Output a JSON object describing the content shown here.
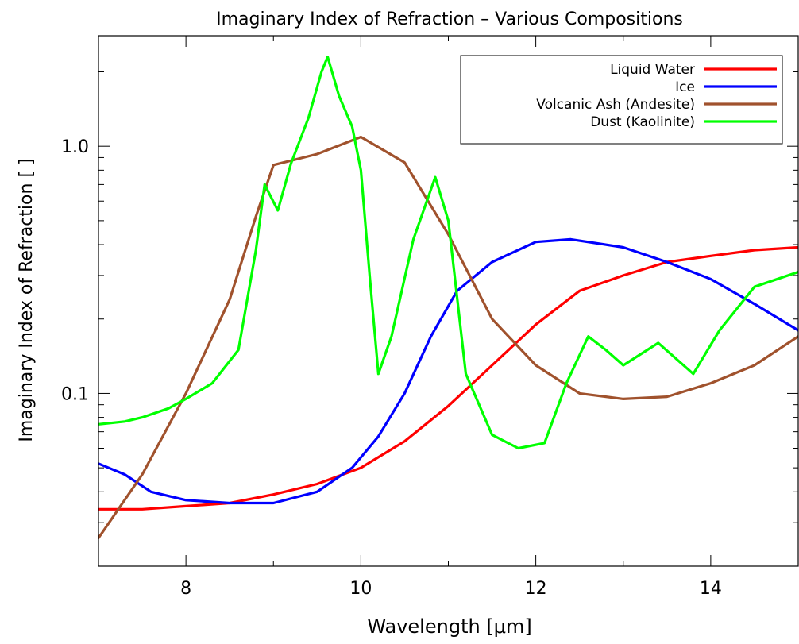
{
  "chart_data": {
    "type": "line",
    "title": "Imaginary Index of Refraction – Various Compositions",
    "xlabel": "Wavelength [μm]",
    "ylabel": "Imaginary Index of Refraction [ ]",
    "xlim": [
      7,
      15
    ],
    "ylim": [
      0.02,
      2.8
    ],
    "yscale": "log",
    "grid": false,
    "legend_position": "top-right",
    "x_ticks": [
      8,
      10,
      12,
      14
    ],
    "x_tick_labels": [
      "8",
      "10",
      "12",
      "14"
    ],
    "y_ticks": [
      0.1,
      1.0
    ],
    "y_tick_labels": [
      "0.1",
      "1.0"
    ],
    "series": [
      {
        "name": "Liquid Water",
        "color": "#ff0000",
        "x": [
          7.0,
          7.5,
          8.0,
          8.5,
          9.0,
          9.5,
          10.0,
          10.5,
          11.0,
          11.5,
          12.0,
          12.5,
          13.0,
          13.5,
          14.0,
          14.5,
          15.0
        ],
        "y": [
          0.034,
          0.034,
          0.035,
          0.036,
          0.039,
          0.043,
          0.05,
          0.064,
          0.089,
          0.13,
          0.19,
          0.26,
          0.3,
          0.34,
          0.36,
          0.38,
          0.39
        ]
      },
      {
        "name": "Ice",
        "color": "#0000ff",
        "x": [
          7.0,
          7.3,
          7.6,
          8.0,
          8.5,
          9.0,
          9.5,
          9.9,
          10.2,
          10.5,
          10.8,
          11.1,
          11.5,
          12.0,
          12.4,
          13.0,
          13.5,
          14.0,
          14.5,
          15.0
        ],
        "y": [
          0.052,
          0.047,
          0.04,
          0.037,
          0.036,
          0.036,
          0.04,
          0.05,
          0.067,
          0.1,
          0.17,
          0.26,
          0.34,
          0.41,
          0.42,
          0.39,
          0.34,
          0.29,
          0.23,
          0.18
        ]
      },
      {
        "name": "Volcanic Ash (Andesite)",
        "color": "#a0522d",
        "x": [
          7.0,
          7.5,
          8.0,
          8.5,
          8.8,
          9.0,
          9.5,
          10.0,
          10.5,
          11.0,
          11.5,
          12.0,
          12.5,
          13.0,
          13.5,
          14.0,
          14.5,
          15.0
        ],
        "y": [
          0.026,
          0.047,
          0.1,
          0.24,
          0.52,
          0.84,
          0.93,
          1.09,
          0.86,
          0.44,
          0.2,
          0.13,
          0.1,
          0.095,
          0.097,
          0.11,
          0.13,
          0.17
        ]
      },
      {
        "name": "Dust (Kaolinite)",
        "color": "#00ff00",
        "x": [
          7.0,
          7.3,
          7.5,
          7.8,
          8.0,
          8.3,
          8.6,
          8.8,
          8.9,
          9.05,
          9.2,
          9.4,
          9.55,
          9.62,
          9.75,
          9.9,
          10.0,
          10.1,
          10.2,
          10.35,
          10.6,
          10.85,
          11.0,
          11.2,
          11.5,
          11.8,
          12.1,
          12.35,
          12.6,
          12.8,
          13.0,
          13.4,
          13.8,
          14.1,
          14.5,
          15.0
        ],
        "y": [
          0.075,
          0.077,
          0.08,
          0.087,
          0.095,
          0.11,
          0.15,
          0.38,
          0.7,
          0.55,
          0.85,
          1.3,
          2.0,
          2.3,
          1.6,
          1.2,
          0.8,
          0.3,
          0.12,
          0.17,
          0.42,
          0.75,
          0.5,
          0.12,
          0.068,
          0.06,
          0.063,
          0.11,
          0.17,
          0.15,
          0.13,
          0.16,
          0.12,
          0.18,
          0.27,
          0.31
        ]
      }
    ]
  }
}
